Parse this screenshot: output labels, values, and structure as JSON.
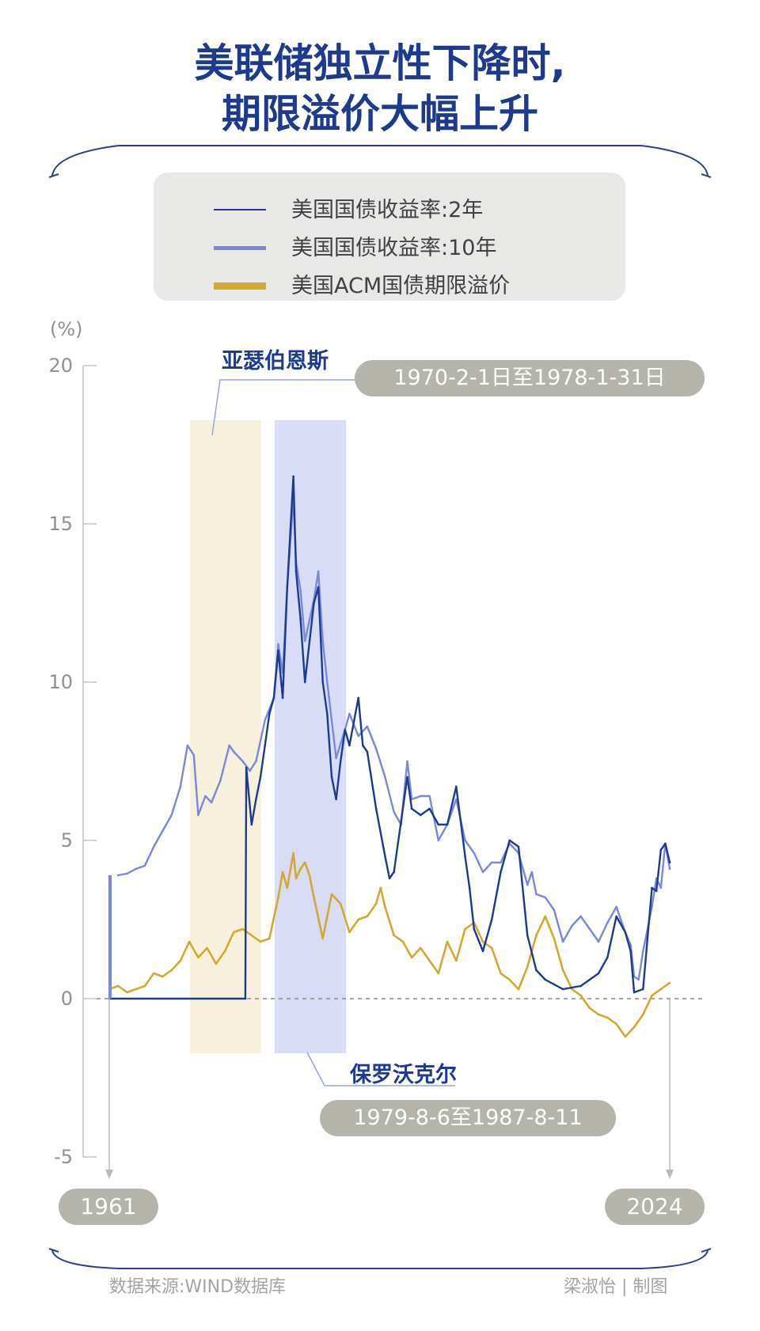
{
  "title_line1": "美联储独立性下降时,",
  "title_line2": "期限溢价大幅上升",
  "colors": {
    "title": "#1e3a8f",
    "y2": "#1e3a8f",
    "y10": "#7a88dc",
    "acm": "#d2a930",
    "burns_shade": "#f7f0dc",
    "volcker_shade": "#d8dcf6",
    "pill": "#b5b4aa"
  },
  "legend": [
    {
      "label": "美国国债收益率:2年",
      "color": "#1e3a8f",
      "thickness": 2
    },
    {
      "label": "美国国债收益率:10年",
      "color": "#7a88dc",
      "thickness": 5
    },
    {
      "label": "美国ACM国债期限溢价",
      "color": "#d2a930",
      "thickness": 9
    }
  ],
  "annotations": {
    "burns_name": "亚瑟伯恩斯",
    "burns_period": "1970-2-1日至1978-1-31日",
    "volcker_name": "保罗沃克尔",
    "volcker_period": "1979-8-6至1987-8-11",
    "start_year": "1961",
    "end_year": "2024"
  },
  "source": "数据来源:WIND数据库",
  "credit": "梁淑怡 | 制图",
  "chart_data": {
    "type": "line",
    "ylabel": "(%)",
    "ylim": [
      -5,
      20
    ],
    "yticks": [
      20,
      15,
      10,
      5,
      0,
      -5
    ],
    "xlim": [
      1961,
      2024
    ],
    "zero_line": "dashed",
    "shaded_periods": [
      {
        "name": "亚瑟伯恩斯",
        "from": 1970.09,
        "to": 1978.08
      },
      {
        "name": "保罗沃克尔",
        "from": 1979.6,
        "to": 1987.61
      }
    ],
    "series": [
      {
        "name": "美国国债收益率:10年",
        "x": [
          1962,
          1963,
          1964,
          1965,
          1966,
          1967,
          1968,
          1969,
          1969.8,
          1970.5,
          1971,
          1971.8,
          1972.5,
          1973.5,
          1974.5,
          1975,
          1976,
          1976.8,
          1977.5,
          1978.5,
          1979.5,
          1980,
          1980.5,
          1981,
          1981.7,
          1982,
          1982.5,
          1983,
          1984,
          1984.5,
          1985,
          1985.5,
          1986.5,
          1987.5,
          1988,
          1989,
          1990,
          1991,
          1992,
          1993,
          1993.8,
          1994.5,
          1995,
          1996,
          1997,
          1998,
          1999,
          2000,
          2001,
          2002,
          2003,
          2004,
          2005,
          2006,
          2007,
          2008,
          2008.5,
          2009,
          2010,
          2011,
          2012,
          2013,
          2014,
          2015,
          2016,
          2017,
          2018,
          2019,
          2019.6,
          2020,
          2020.5,
          2021,
          2022,
          2022.5,
          2023,
          2023.5,
          2024
        ],
        "y": [
          3.9,
          3.95,
          4.1,
          4.2,
          4.8,
          5.3,
          5.8,
          6.7,
          8.0,
          7.7,
          5.8,
          6.4,
          6.2,
          6.9,
          8.0,
          7.8,
          7.5,
          7.2,
          7.5,
          8.8,
          9.5,
          11.2,
          10.3,
          13.0,
          15.8,
          13.8,
          12.9,
          11.3,
          12.6,
          13.5,
          11.3,
          10.0,
          7.6,
          8.5,
          9.0,
          8.3,
          8.6,
          7.9,
          7.0,
          5.9,
          5.5,
          7.5,
          6.3,
          6.4,
          6.4,
          5.0,
          5.5,
          6.3,
          5.0,
          4.6,
          4.0,
          4.3,
          4.3,
          4.9,
          4.6,
          3.6,
          4.0,
          3.3,
          3.2,
          2.8,
          1.8,
          2.3,
          2.6,
          2.2,
          1.8,
          2.4,
          2.9,
          2.1,
          1.7,
          0.7,
          0.6,
          1.5,
          2.9,
          3.8,
          3.5,
          4.9,
          4.1
        ]
      },
      {
        "name": "美国国债收益率:2年",
        "x": [
          1961,
          1976.3,
          1976.4,
          1977,
          1977.5,
          1978,
          1978.5,
          1979,
          1979.5,
          1980,
          1980.5,
          1981,
          1981.7,
          1982,
          1982.5,
          1983,
          1984,
          1984.5,
          1985,
          1985.5,
          1986,
          1986.5,
          1987,
          1987.5,
          1988,
          1989,
          1989.5,
          1990,
          1991,
          1992,
          1992.5,
          1993,
          1994.5,
          1995,
          1996,
          1997,
          1998,
          1999,
          2000,
          2001,
          2001.5,
          2002,
          2003,
          2004,
          2005,
          2006,
          2007,
          2008,
          2009,
          2010,
          2012,
          2014,
          2015,
          2016,
          2017,
          2018,
          2019,
          2019.6,
          2020,
          2021,
          2022,
          2022.5,
          2023,
          2023.5,
          2024
        ],
        "y": [
          0,
          0,
          7.3,
          5.5,
          6.3,
          7.0,
          8.0,
          9.0,
          9.5,
          11.0,
          9.5,
          13.0,
          16.5,
          13.5,
          12.0,
          10.0,
          12.5,
          13.0,
          10.0,
          9.0,
          7.0,
          6.3,
          7.5,
          8.5,
          8.0,
          9.5,
          8.0,
          7.8,
          6.0,
          4.5,
          3.8,
          4.0,
          7.0,
          6.0,
          5.8,
          6.0,
          5.5,
          5.5,
          6.7,
          4.5,
          3.5,
          2.2,
          1.5,
          2.5,
          4.0,
          5.0,
          4.8,
          2.0,
          0.9,
          0.6,
          0.3,
          0.4,
          0.6,
          0.8,
          1.3,
          2.6,
          2.1,
          1.5,
          0.2,
          0.3,
          3.5,
          3.4,
          4.7,
          4.9,
          4.3
        ]
      },
      {
        "name": "美国ACM国债期限溢价",
        "x": [
          1961,
          1962,
          1963,
          1964,
          1965,
          1966,
          1967,
          1968,
          1969,
          1970,
          1971,
          1972,
          1973,
          1974,
          1975,
          1976,
          1977,
          1978,
          1979,
          1980,
          1980.5,
          1981,
          1981.7,
          1982,
          1982.5,
          1983,
          1983.5,
          1984,
          1985,
          1986,
          1987,
          1988,
          1989,
          1990,
          1991,
          1991.5,
          1992,
          1993,
          1994,
          1995,
          1996,
          1997,
          1998,
          1999,
          2000,
          2001,
          2002,
          2003,
          2004,
          2005,
          2006,
          2007,
          2008,
          2009,
          2010,
          2011,
          2012,
          2013,
          2014,
          2015,
          2016,
          2017,
          2018,
          2019,
          2020,
          2021,
          2022,
          2023,
          2024
        ],
        "y": [
          0.3,
          0.4,
          0.2,
          0.3,
          0.4,
          0.8,
          0.7,
          0.9,
          1.2,
          1.8,
          1.3,
          1.6,
          1.1,
          1.5,
          2.1,
          2.2,
          2.0,
          1.8,
          1.9,
          3.2,
          4.0,
          3.5,
          4.6,
          3.8,
          4.1,
          4.3,
          3.9,
          3.2,
          1.9,
          3.3,
          3.0,
          2.1,
          2.5,
          2.6,
          3.0,
          3.5,
          2.9,
          2.0,
          1.8,
          1.3,
          1.6,
          1.2,
          0.8,
          1.8,
          1.2,
          2.2,
          2.4,
          1.8,
          1.6,
          0.8,
          0.6,
          0.3,
          1.0,
          2.0,
          2.6,
          1.9,
          0.9,
          0.3,
          0.1,
          -0.3,
          -0.5,
          -0.6,
          -0.8,
          -1.2,
          -0.9,
          -0.5,
          0.1,
          0.3,
          0.5
        ]
      }
    ]
  }
}
